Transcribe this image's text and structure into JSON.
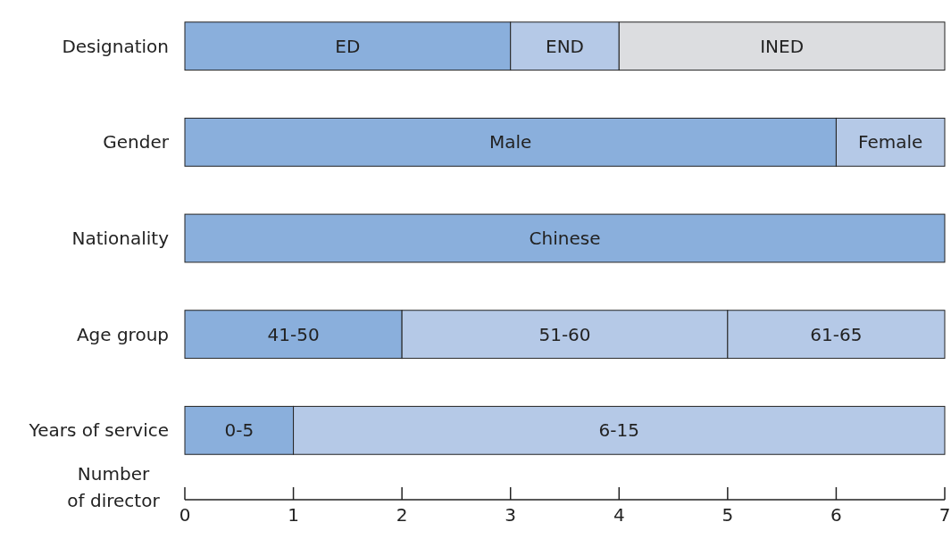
{
  "chart_data": {
    "type": "bar",
    "orientation": "horizontal",
    "stacked": true,
    "xlabel": "Number of director",
    "categories": [
      "Designation",
      "Gender",
      "Nationality",
      "Age group",
      "Years of service"
    ],
    "series": [
      {
        "colors": [
          "#8aafdc",
          "#8aafdc",
          "#8aafdc",
          "#8aafdc",
          "#8aafdc"
        ],
        "values": [
          3,
          6,
          7,
          2,
          1
        ],
        "value_labels": [
          "ED",
          "Male",
          "Chinese",
          "41-50",
          "0-5"
        ]
      },
      {
        "colors": [
          "#b5c9e7",
          "#b5c9e7",
          null,
          "#b5c9e7",
          "#b5c9e7"
        ],
        "values": [
          1,
          1,
          null,
          3,
          6
        ],
        "value_labels": [
          "END",
          "Female",
          null,
          "51-60",
          "6-15"
        ]
      },
      {
        "colors": [
          "#dcdde0",
          null,
          null,
          "#b5c9e7",
          null
        ],
        "values": [
          3,
          null,
          null,
          2,
          null
        ],
        "value_labels": [
          "INED",
          null,
          null,
          "61-65",
          null
        ]
      }
    ],
    "xlim": [
      0,
      7
    ],
    "xticks": [
      0,
      1,
      2,
      3,
      4,
      5,
      6,
      7
    ],
    "grid": false
  }
}
